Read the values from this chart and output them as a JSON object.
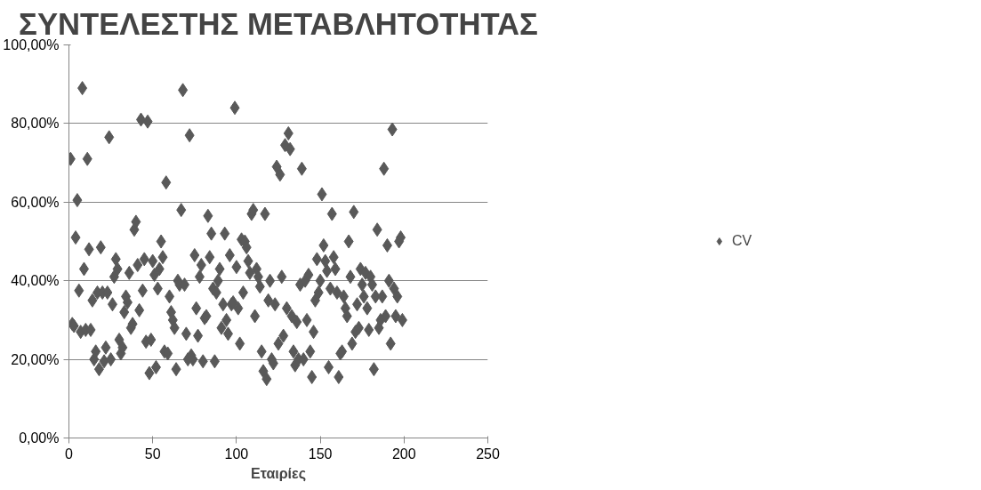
{
  "chart_data": {
    "type": "scatter",
    "title": "ΣΥΝΤΕΛΕΣΤΗΣ ΜΕΤΑΒΛΗΤΟΤΗΤΑΣ",
    "xlabel": "Εταιρίες",
    "x": [
      1,
      2,
      3,
      4,
      5,
      6,
      7,
      8,
      9,
      10,
      11,
      12,
      13,
      14,
      15,
      16,
      17,
      18,
      19,
      20,
      21,
      22,
      23,
      24,
      25,
      26,
      27,
      28,
      29,
      30,
      31,
      32,
      33,
      34,
      35,
      36,
      37,
      38,
      39,
      40,
      41,
      42,
      43,
      44,
      45,
      46,
      47,
      48,
      49,
      50,
      51,
      52,
      53,
      54,
      55,
      56,
      57,
      58,
      59,
      60,
      61,
      62,
      63,
      64,
      65,
      66,
      67,
      68,
      69,
      70,
      71,
      72,
      73,
      74,
      75,
      76,
      77,
      78,
      79,
      80,
      81,
      82,
      83,
      84,
      85,
      86,
      87,
      88,
      89,
      90,
      91,
      92,
      93,
      94,
      95,
      96,
      97,
      98,
      99,
      100,
      101,
      102,
      103,
      104,
      105,
      106,
      107,
      108,
      109,
      110,
      111,
      112,
      113,
      114,
      115,
      116,
      117,
      118,
      119,
      120,
      121,
      122,
      123,
      124,
      125,
      126,
      127,
      128,
      129,
      130,
      131,
      132,
      133,
      134,
      135,
      136,
      137,
      138,
      139,
      140,
      141,
      142,
      143,
      144,
      145,
      146,
      147,
      148,
      149,
      150,
      151,
      152,
      153,
      154,
      155,
      156,
      157,
      158,
      159,
      160,
      161,
      162,
      163,
      164,
      165,
      166,
      167,
      168,
      169,
      170,
      171,
      172,
      173,
      174,
      175,
      176,
      177,
      178,
      179,
      180,
      181,
      182,
      183,
      184,
      185,
      186,
      187,
      188,
      189,
      190,
      191,
      192,
      193,
      194,
      195,
      196,
      197,
      198,
      199
    ],
    "series": [
      {
        "name": "CV",
        "color": "#595959",
        "values": [
          71,
          29,
          28.5,
          51,
          60.5,
          37.5,
          27,
          89,
          43,
          27.5,
          71,
          48,
          27.5,
          35,
          20,
          22,
          37,
          17.5,
          48.5,
          37,
          19.5,
          23,
          37,
          76.5,
          20,
          34,
          41,
          45.5,
          43,
          25,
          21.5,
          23,
          32,
          36,
          34.5,
          42,
          28,
          29,
          53,
          55,
          44,
          32.5,
          81,
          37.5,
          45.5,
          24.5,
          80.5,
          16.5,
          25,
          45,
          41.5,
          18,
          38,
          43,
          50,
          46,
          22,
          65,
          21.5,
          36,
          32,
          30,
          28,
          17.5,
          40,
          39,
          58,
          88.5,
          39,
          26.5,
          20,
          77,
          21,
          20,
          46.5,
          33,
          26,
          41,
          44,
          19.5,
          30.5,
          31,
          56.5,
          46,
          52,
          38,
          19.5,
          37,
          40,
          43,
          28,
          34,
          52,
          30,
          26.5,
          46.5,
          34,
          34.5,
          84,
          43.5,
          33,
          24,
          50.5,
          37,
          50,
          48.5,
          45,
          42,
          57,
          58,
          31,
          43,
          41,
          38.5,
          22,
          17,
          57,
          15,
          35,
          40,
          20,
          19,
          34,
          69,
          24,
          67,
          41,
          26,
          74.5,
          33,
          77.5,
          73.5,
          31,
          22,
          18.5,
          29.5,
          20,
          39,
          68.5,
          20,
          40,
          30,
          41.5,
          22,
          15.5,
          27,
          35,
          45.5,
          37,
          40,
          62,
          49,
          45,
          42.5,
          18,
          38,
          57,
          46,
          43,
          37,
          15.5,
          21.5,
          22,
          36,
          33,
          31,
          50,
          41,
          24,
          57.5,
          27,
          34,
          28,
          43,
          39,
          36,
          42,
          33,
          27.5,
          41,
          39,
          17.5,
          36,
          53,
          28,
          30,
          36,
          68.5,
          31,
          49,
          40,
          24,
          78.5,
          38,
          31,
          36,
          50,
          51,
          30
        ]
      }
    ],
    "marker": "diamond",
    "grid": "y",
    "legend": "right",
    "xlim": [
      0,
      250
    ],
    "xticks": [
      0,
      50,
      100,
      150,
      200,
      250
    ],
    "ylim": [
      0,
      100
    ],
    "yticks": [
      {
        "value": 0,
        "label": "0,00%"
      },
      {
        "value": 20,
        "label": "20,00%"
      },
      {
        "value": 40,
        "label": "40,00%"
      },
      {
        "value": 60,
        "label": "60,00%"
      },
      {
        "value": 80,
        "label": "80,00%"
      },
      {
        "value": 100,
        "label": "100,00%"
      }
    ]
  }
}
